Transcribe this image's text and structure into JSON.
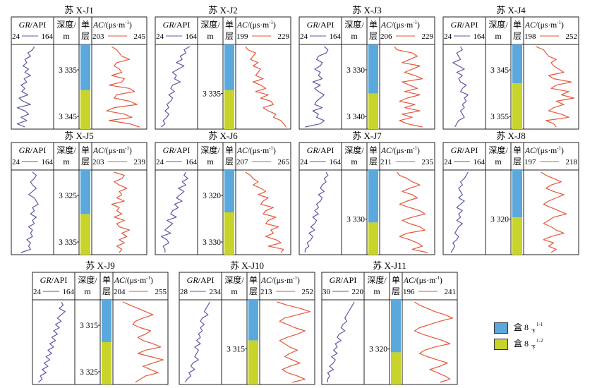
{
  "colors": {
    "gr_curve": "#5a5aa8",
    "ac_curve": "#e8553a",
    "layer_upper": "#5aa8dc",
    "layer_lower": "#c8d42a",
    "border": "#222222"
  },
  "headers": {
    "gr": "GR/API",
    "depth": "深度/",
    "depth_unit": "m",
    "layer1": "单",
    "layer2": "层",
    "ac": "AC/(μs·m",
    "ac_exp": "-1",
    "ac_close": ")"
  },
  "wells": [
    {
      "title": "苏 X-J1",
      "gr_range": [
        "24",
        "164"
      ],
      "ac_range": [
        "203",
        "245"
      ],
      "depth_ticks": [
        "3 335",
        "3 345"
      ],
      "split": 0.54,
      "gr_curve": [
        0.55,
        0.5,
        0.38,
        0.45,
        0.3,
        0.35,
        0.25,
        0.4,
        0.3,
        0.45,
        0.28,
        0.35,
        0.2,
        0.3,
        0.22,
        0.38,
        0.15,
        0.25,
        0.45,
        0.1,
        0.3,
        0.4,
        0.2,
        0.35,
        0.1,
        0.3
      ],
      "ac_curve": [
        0.35,
        0.45,
        0.5,
        0.55,
        0.7,
        0.45,
        0.4,
        0.5,
        0.55,
        0.35,
        0.6,
        0.55,
        0.3,
        0.7,
        0.8,
        0.45,
        0.4,
        0.7,
        0.85,
        0.4,
        0.25,
        0.6,
        0.75,
        0.3,
        0.7,
        0.9
      ]
    },
    {
      "title": "苏 X-J2",
      "gr_range": [
        "24",
        "164"
      ],
      "ac_range": [
        "199",
        "229"
      ],
      "depth_ticks": [
        "3 335"
      ],
      "split": 0.54,
      "gr_curve": [
        0.85,
        0.7,
        0.75,
        0.6,
        0.65,
        0.5,
        0.7,
        0.55,
        0.4,
        0.5,
        0.45,
        0.6,
        0.4,
        0.35,
        0.45,
        0.3,
        0.4,
        0.35,
        0.25,
        0.3,
        0.2,
        0.3,
        0.25,
        0.15,
        0.2,
        0.1
      ],
      "ac_curve": [
        0.15,
        0.2,
        0.35,
        0.3,
        0.25,
        0.4,
        0.3,
        0.45,
        0.4,
        0.35,
        0.5,
        0.3,
        0.45,
        0.55,
        0.35,
        0.6,
        0.45,
        0.65,
        0.7,
        0.5,
        0.6,
        0.75,
        0.7,
        0.85,
        0.9,
        0.95
      ]
    },
    {
      "title": "苏 X-J3",
      "gr_range": [
        "24",
        "164"
      ],
      "ac_range": [
        "206",
        "229"
      ],
      "depth_ticks": [
        "3 330",
        "3 340"
      ],
      "split": 0.58,
      "gr_curve": [
        0.6,
        0.7,
        0.65,
        0.45,
        0.4,
        0.55,
        0.5,
        0.35,
        0.5,
        0.45,
        0.55,
        0.3,
        0.5,
        0.35,
        0.45,
        0.6,
        0.5,
        0.4,
        0.35,
        0.55,
        0.3,
        0.45,
        0.4,
        0.6,
        0.5,
        0.1
      ],
      "ac_curve": [
        0.25,
        0.3,
        0.6,
        0.7,
        0.55,
        0.4,
        0.75,
        0.6,
        0.45,
        0.65,
        0.8,
        0.4,
        0.55,
        0.7,
        0.45,
        0.75,
        0.5,
        0.35,
        0.65,
        0.45,
        0.75,
        0.4,
        0.6,
        0.35,
        0.5,
        0.8
      ]
    },
    {
      "title": "苏 X-J4",
      "gr_range": [
        "24",
        "164"
      ],
      "ac_range": [
        "198",
        "252"
      ],
      "depth_ticks": [
        "3 345",
        "3 355"
      ],
      "split": 0.46,
      "gr_curve": [
        0.4,
        0.45,
        0.3,
        0.35,
        0.4,
        0.2,
        0.35,
        0.5,
        0.3,
        0.45,
        0.35,
        0.4,
        0.55,
        0.45,
        0.4,
        0.6,
        0.5,
        0.55,
        0.45,
        0.5,
        0.4,
        0.45,
        0.5,
        0.35,
        0.3,
        0.25
      ],
      "ac_curve": [
        0.2,
        0.35,
        0.4,
        0.45,
        0.6,
        0.5,
        0.55,
        0.65,
        0.75,
        0.45,
        0.55,
        0.9,
        0.6,
        0.5,
        0.85,
        0.7,
        0.95,
        0.6,
        0.75,
        0.55,
        0.45,
        0.7,
        0.85,
        0.4,
        0.55,
        0.6
      ]
    },
    {
      "title": "苏 X-J5",
      "gr_range": [
        "24",
        "164"
      ],
      "ac_range": [
        "203",
        "239"
      ],
      "depth_ticks": [
        "3 325",
        "3 335"
      ],
      "split": 0.52,
      "gr_curve": [
        0.5,
        0.6,
        0.55,
        0.45,
        0.5,
        0.6,
        0.5,
        0.4,
        0.55,
        0.6,
        0.65,
        0.5,
        0.55,
        0.45,
        0.6,
        0.5,
        0.55,
        0.4,
        0.5,
        0.45,
        0.5,
        0.35,
        0.45,
        0.4,
        0.45,
        0.2
      ],
      "ac_curve": [
        0.4,
        0.6,
        0.55,
        0.4,
        0.5,
        0.65,
        0.5,
        0.55,
        0.45,
        0.6,
        0.35,
        0.5,
        0.45,
        0.55,
        0.4,
        0.6,
        0.45,
        0.5,
        0.7,
        0.55,
        0.65,
        0.5,
        0.6,
        0.45,
        0.55,
        0.5
      ]
    },
    {
      "title": "苏 X-J6",
      "gr_range": [
        "24",
        "164"
      ],
      "ac_range": [
        "207",
        "265"
      ],
      "depth_ticks": [
        "3 320",
        "3 330"
      ],
      "split": 0.5,
      "gr_curve": [
        0.75,
        0.7,
        0.8,
        0.65,
        0.75,
        0.55,
        0.7,
        0.6,
        0.5,
        0.65,
        0.45,
        0.55,
        0.4,
        0.35,
        0.5,
        0.25,
        0.4,
        0.3,
        0.2,
        0.35,
        0.1,
        0.25,
        0.3,
        0.15,
        0.2,
        0.2
      ],
      "ac_curve": [
        0.15,
        0.25,
        0.3,
        0.4,
        0.3,
        0.45,
        0.55,
        0.4,
        0.6,
        0.5,
        0.45,
        0.7,
        0.55,
        0.5,
        0.75,
        0.6,
        0.55,
        0.8,
        0.65,
        0.7,
        0.55,
        0.75,
        0.85,
        0.6,
        0.9,
        0.85
      ]
    },
    {
      "title": "苏 X-J7",
      "gr_range": [
        "24",
        "164"
      ],
      "ac_range": [
        "211",
        "235"
      ],
      "depth_ticks": [
        "3 330"
      ],
      "split": 0.62,
      "gr_curve": [
        0.65,
        0.7,
        0.6,
        0.65,
        0.55,
        0.5,
        0.6,
        0.45,
        0.55,
        0.5,
        0.4,
        0.45,
        0.35,
        0.45,
        0.3,
        0.4,
        0.35,
        0.25,
        0.35,
        0.2,
        0.3,
        0.25,
        0.15,
        0.2,
        0.1,
        0.1
      ],
      "ac_curve": [
        0.3,
        0.35,
        0.5,
        0.6,
        0.75,
        0.55,
        0.4,
        0.6,
        0.7,
        0.5,
        0.35,
        0.55,
        0.75,
        0.85,
        0.6,
        0.4,
        0.55,
        0.75,
        0.85,
        0.5,
        0.35,
        0.55,
        0.7,
        0.8,
        0.6,
        0.9
      ]
    },
    {
      "title": "苏 X-J8",
      "gr_range": [
        "24",
        "164"
      ],
      "ac_range": [
        "197",
        "218"
      ],
      "depth_ticks": [
        "3 320"
      ],
      "split": 0.56,
      "gr_curve": [
        0.6,
        0.55,
        0.5,
        0.4,
        0.45,
        0.35,
        0.4,
        0.45,
        0.35,
        0.5,
        0.4,
        0.3,
        0.45,
        0.35,
        0.4,
        0.3,
        0.45,
        0.35,
        0.3,
        0.25,
        0.35,
        0.3,
        0.2,
        0.25,
        0.2,
        0.15
      ],
      "ac_curve": [
        0.3,
        0.4,
        0.55,
        0.7,
        0.5,
        0.4,
        0.55,
        0.75,
        0.6,
        0.45,
        0.35,
        0.5,
        0.65,
        0.8,
        0.55,
        0.45,
        0.35,
        0.5,
        0.6,
        0.75,
        0.5,
        0.35,
        0.55,
        0.45,
        0.6,
        0.5
      ]
    },
    {
      "title": "苏 X-J9",
      "gr_range": [
        "24",
        "164"
      ],
      "ac_range": [
        "204",
        "255"
      ],
      "depth_ticks": [
        "3 315",
        "3 325"
      ],
      "split": 0.5,
      "gr_curve": [
        0.7,
        0.75,
        0.65,
        0.8,
        0.7,
        0.6,
        0.7,
        0.55,
        0.65,
        0.5,
        0.6,
        0.45,
        0.55,
        0.4,
        0.5,
        0.35,
        0.45,
        0.3,
        0.4,
        0.25,
        0.35,
        0.2,
        0.3,
        0.15,
        0.2,
        0.1
      ],
      "ac_curve": [
        0.15,
        0.3,
        0.45,
        0.6,
        0.75,
        0.55,
        0.4,
        0.35,
        0.5,
        0.7,
        0.6,
        0.45,
        0.55,
        0.75,
        0.9,
        0.6,
        0.45,
        0.7,
        0.95,
        0.75,
        0.55,
        0.7,
        0.85,
        0.6,
        0.5,
        0.4
      ]
    },
    {
      "title": "苏 X-J10",
      "gr_range": [
        "28",
        "234"
      ],
      "ac_range": [
        "213",
        "252"
      ],
      "depth_ticks": [
        "3 315"
      ],
      "split": 0.48,
      "gr_curve": [
        0.75,
        0.7,
        0.65,
        0.6,
        0.7,
        0.55,
        0.5,
        0.6,
        0.5,
        0.55,
        0.45,
        0.5,
        0.4,
        0.5,
        0.35,
        0.45,
        0.4,
        0.35,
        0.45,
        0.3,
        0.25,
        0.35,
        0.2,
        0.25,
        0.15,
        0.1
      ],
      "ac_curve": [
        0.3,
        0.5,
        0.75,
        0.95,
        0.7,
        0.45,
        0.35,
        0.5,
        0.65,
        0.85,
        0.7,
        0.5,
        0.35,
        0.45,
        0.55,
        0.7,
        0.55,
        0.45,
        0.6,
        0.75,
        0.55,
        0.4,
        0.5,
        0.7,
        0.85,
        0.6
      ]
    },
    {
      "title": "苏 X-J11",
      "gr_range": [
        "30",
        "220"
      ],
      "ac_range": [
        "196",
        "241"
      ],
      "depth_ticks": [
        "3 320"
      ],
      "split": 0.62,
      "gr_curve": [
        0.8,
        0.75,
        0.7,
        0.65,
        0.6,
        0.55,
        0.6,
        0.5,
        0.45,
        0.55,
        0.4,
        0.35,
        0.45,
        0.3,
        0.35,
        0.25,
        0.35,
        0.2,
        0.3,
        0.25,
        0.15,
        0.25,
        0.1,
        0.15,
        0.1,
        0.1
      ],
      "ac_curve": [
        0.2,
        0.3,
        0.45,
        0.6,
        0.8,
        0.95,
        0.7,
        0.5,
        0.3,
        0.2,
        0.35,
        0.55,
        0.75,
        0.9,
        0.6,
        0.4,
        0.3,
        0.45,
        0.65,
        0.85,
        0.7,
        0.5,
        0.65,
        0.8,
        0.9,
        0.7
      ]
    }
  ],
  "legend": [
    {
      "text": "盒 8 ",
      "sub": "下",
      "sup": "1-1",
      "color_key": "layer_upper"
    },
    {
      "text": "盒 8 ",
      "sub": "下",
      "sup": "1-2",
      "color_key": "layer_lower"
    }
  ]
}
